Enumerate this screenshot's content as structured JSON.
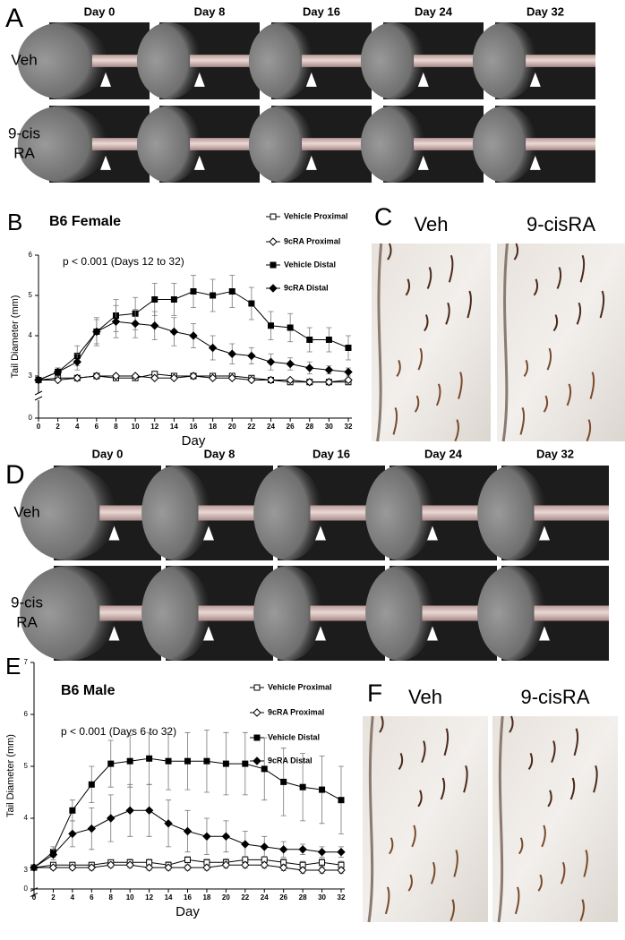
{
  "panels": {
    "A": {
      "label": "A",
      "columns": [
        "Day 0",
        "Day 8",
        "Day 16",
        "Day 24",
        "Day 32"
      ],
      "rows": [
        [
          "Veh"
        ],
        [
          "9-cis",
          "RA"
        ]
      ]
    },
    "C": {
      "label": "C",
      "images": [
        "Veh",
        "9-cisRA"
      ]
    },
    "D": {
      "label": "D",
      "columns": [
        "Day 0",
        "Day 8",
        "Day 16",
        "Day 24",
        "Day 32"
      ],
      "rows": [
        [
          "Veh"
        ],
        [
          "9-cis",
          "RA"
        ]
      ]
    },
    "F": {
      "label": "F",
      "images": [
        "Veh",
        "9-cisRA"
      ]
    }
  },
  "chart_data": [
    {
      "type": "line",
      "panel_label": "B",
      "title": "B6 Female",
      "annotation": "p < 0.001 (Days 12 to 32)",
      "xlabel": "Day",
      "ylabel": "Tail Diameter (mm)",
      "x": [
        0,
        2,
        4,
        6,
        8,
        10,
        12,
        14,
        16,
        18,
        20,
        22,
        24,
        26,
        28,
        30,
        32
      ],
      "xlim": [
        0,
        32
      ],
      "xticks": [
        0,
        2,
        4,
        6,
        8,
        10,
        12,
        14,
        16,
        18,
        20,
        22,
        24,
        26,
        28,
        30,
        32
      ],
      "ylim": [
        2.8,
        6
      ],
      "yticks": [
        3,
        4,
        5,
        6
      ],
      "ybreak_tick": 0,
      "series": [
        {
          "name": "Vehicle Proximal",
          "color": "#000000",
          "marker": "square",
          "filled": false,
          "values": [
            2.9,
            2.95,
            2.95,
            3.0,
            2.95,
            2.95,
            3.05,
            3.0,
            3.0,
            3.0,
            3.0,
            2.95,
            2.9,
            2.85,
            2.85,
            2.85,
            2.85
          ],
          "errors": [
            0.03,
            0.03,
            0.04,
            0.04,
            0.04,
            0.04,
            0.05,
            0.04,
            0.04,
            0.04,
            0.05,
            0.04,
            0.04,
            0.04,
            0.04,
            0.04,
            0.04
          ]
        },
        {
          "name": "9cRA Proximal",
          "color": "#000000",
          "marker": "diamond",
          "filled": false,
          "values": [
            2.9,
            2.9,
            2.95,
            3.0,
            3.0,
            3.0,
            2.95,
            2.95,
            3.0,
            2.95,
            2.95,
            2.9,
            2.9,
            2.9,
            2.85,
            2.85,
            2.9
          ],
          "errors": [
            0.03,
            0.03,
            0.04,
            0.04,
            0.04,
            0.04,
            0.04,
            0.04,
            0.04,
            0.04,
            0.04,
            0.04,
            0.04,
            0.04,
            0.04,
            0.04,
            0.04
          ]
        },
        {
          "name": "Vehicle Distal",
          "color": "#000000",
          "marker": "square",
          "filled": true,
          "values": [
            2.9,
            3.1,
            3.5,
            4.1,
            4.5,
            4.55,
            4.9,
            4.9,
            5.1,
            5.0,
            5.1,
            4.8,
            4.25,
            4.2,
            3.9,
            3.9,
            3.7
          ],
          "errors": [
            0.05,
            0.1,
            0.25,
            0.35,
            0.4,
            0.4,
            0.4,
            0.4,
            0.4,
            0.4,
            0.4,
            0.4,
            0.35,
            0.35,
            0.3,
            0.3,
            0.3
          ]
        },
        {
          "name": "9cRA Distal",
          "color": "#000000",
          "marker": "diamond",
          "filled": true,
          "values": [
            2.9,
            3.1,
            3.35,
            4.1,
            4.35,
            4.3,
            4.25,
            4.1,
            4.0,
            3.7,
            3.55,
            3.5,
            3.35,
            3.3,
            3.2,
            3.15,
            3.1
          ],
          "errors": [
            0.05,
            0.1,
            0.2,
            0.3,
            0.4,
            0.35,
            0.35,
            0.35,
            0.3,
            0.3,
            0.25,
            0.2,
            0.2,
            0.15,
            0.15,
            0.1,
            0.1
          ]
        }
      ]
    },
    {
      "type": "line",
      "panel_label": "E",
      "title": "B6 Male",
      "annotation": "p < 0.001 (Days 6 to 32)",
      "xlabel": "Day",
      "ylabel": "Tail Diameter (mm)",
      "x": [
        0,
        2,
        4,
        6,
        8,
        10,
        12,
        14,
        16,
        18,
        20,
        22,
        24,
        26,
        28,
        30,
        32
      ],
      "xlim": [
        0,
        32
      ],
      "xticks": [
        0,
        2,
        4,
        6,
        8,
        10,
        12,
        14,
        16,
        18,
        20,
        22,
        24,
        26,
        28,
        30,
        32
      ],
      "ylim": [
        2.8,
        7
      ],
      "yticks": [
        3,
        4,
        5,
        6,
        7
      ],
      "ybreak_tick": 0,
      "series": [
        {
          "name": "Vehicle Proximal",
          "color": "#000000",
          "marker": "square",
          "filled": false,
          "values": [
            3.05,
            3.1,
            3.1,
            3.1,
            3.15,
            3.15,
            3.15,
            3.1,
            3.2,
            3.15,
            3.15,
            3.2,
            3.2,
            3.15,
            3.1,
            3.15,
            3.1
          ],
          "errors": [
            0.03,
            0.04,
            0.05,
            0.05,
            0.05,
            0.06,
            0.06,
            0.06,
            0.06,
            0.06,
            0.07,
            0.07,
            0.07,
            0.07,
            0.07,
            0.07,
            0.07
          ]
        },
        {
          "name": "9cRA Proximal",
          "color": "#000000",
          "marker": "diamond",
          "filled": false,
          "values": [
            3.05,
            3.05,
            3.05,
            3.05,
            3.1,
            3.1,
            3.05,
            3.05,
            3.05,
            3.05,
            3.1,
            3.1,
            3.1,
            3.05,
            3.0,
            3.0,
            3.0
          ],
          "errors": [
            0.03,
            0.04,
            0.04,
            0.05,
            0.05,
            0.05,
            0.05,
            0.05,
            0.05,
            0.05,
            0.06,
            0.06,
            0.06,
            0.06,
            0.06,
            0.06,
            0.06
          ]
        },
        {
          "name": "Vehicle Distal",
          "color": "#000000",
          "marker": "square",
          "filled": true,
          "values": [
            3.05,
            3.35,
            4.15,
            4.65,
            5.05,
            5.1,
            5.15,
            5.1,
            5.1,
            5.1,
            5.05,
            5.05,
            4.95,
            4.7,
            4.6,
            4.55,
            4.35
          ],
          "errors": [
            0.05,
            0.1,
            0.2,
            0.35,
            0.45,
            0.5,
            0.5,
            0.55,
            0.55,
            0.6,
            0.6,
            0.6,
            0.6,
            0.65,
            0.65,
            0.65,
            0.65
          ]
        },
        {
          "name": "9cRA Distal",
          "color": "#000000",
          "marker": "diamond",
          "filled": true,
          "values": [
            3.05,
            3.3,
            3.7,
            3.8,
            4.0,
            4.15,
            4.15,
            3.9,
            3.75,
            3.65,
            3.65,
            3.5,
            3.45,
            3.4,
            3.4,
            3.35,
            3.35
          ],
          "errors": [
            0.05,
            0.1,
            0.25,
            0.4,
            0.45,
            0.5,
            0.5,
            0.45,
            0.4,
            0.35,
            0.3,
            0.25,
            0.2,
            0.15,
            0.1,
            0.1,
            0.1
          ]
        }
      ]
    }
  ]
}
